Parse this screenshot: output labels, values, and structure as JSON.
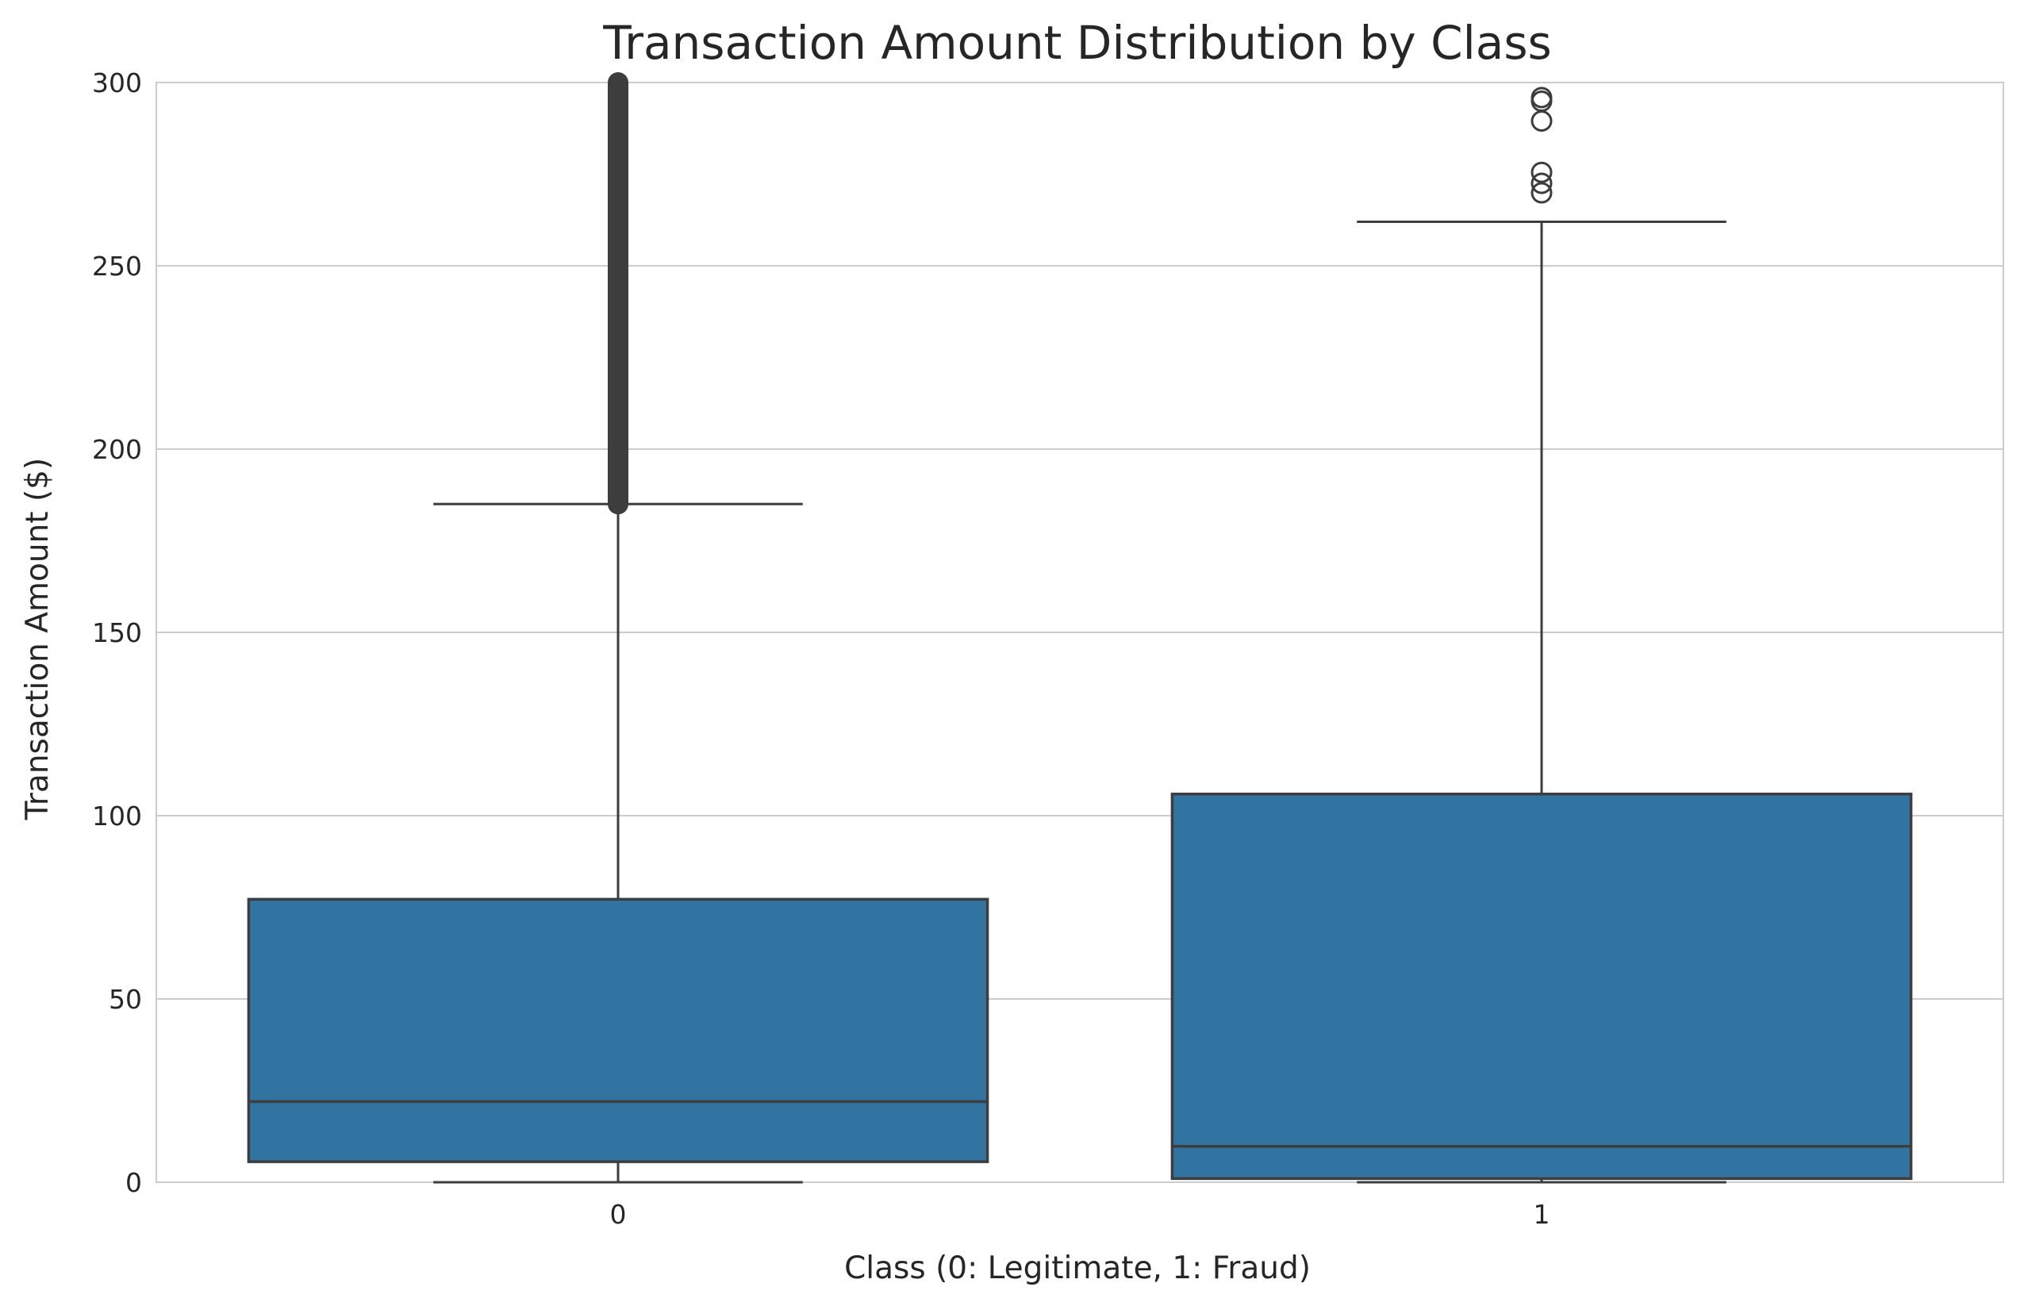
{
  "chart_data": {
    "type": "box",
    "title": "Transaction Amount Distribution by Class",
    "xlabel": "Class (0: Legitimate, 1: Fraud)",
    "ylabel": "Transaction Amount ($)",
    "ylim": [
      0,
      300
    ],
    "yticks": [
      0,
      50,
      100,
      150,
      200,
      250,
      300
    ],
    "grid": true,
    "colors": {
      "box": "#3274a1",
      "edge": "#3d3d3d",
      "grid": "#cccccc",
      "spine": "#cccccc"
    },
    "categories": [
      "0",
      "1"
    ],
    "boxes": [
      {
        "category": "0",
        "whisker_low": 0,
        "q1": 5.6,
        "median": 22,
        "q3": 77.2,
        "whisker_high": 185,
        "outliers_range": [
          185,
          300
        ]
      },
      {
        "category": "1",
        "whisker_low": 0,
        "q1": 1,
        "median": 9.8,
        "q3": 105.9,
        "whisker_high": 262,
        "outliers": [
          269.9,
          272.5,
          275.5,
          289.5,
          294.9,
          295.9
        ]
      }
    ]
  }
}
